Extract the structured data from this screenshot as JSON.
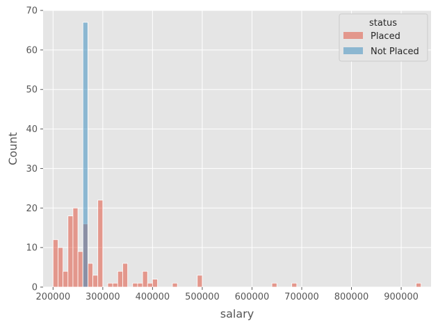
{
  "chart_data": {
    "type": "bar",
    "title": "",
    "xlabel": "salary",
    "ylabel": "Count",
    "xlim": [
      180000,
      960000
    ],
    "ylim": [
      0,
      70
    ],
    "x_ticks": [
      200000,
      300000,
      400000,
      500000,
      600000,
      700000,
      800000,
      900000
    ],
    "y_ticks": [
      0,
      10,
      20,
      30,
      40,
      50,
      60,
      70
    ],
    "grid": true,
    "legend": {
      "title": "status",
      "placement": "top-right"
    },
    "bin_width": 10000,
    "series": [
      {
        "name": "Placed",
        "color": "#E24A33",
        "bins": [
          {
            "x0": 200000,
            "count": 12
          },
          {
            "x0": 210000,
            "count": 10
          },
          {
            "x0": 220000,
            "count": 4
          },
          {
            "x0": 230000,
            "count": 18
          },
          {
            "x0": 240000,
            "count": 20
          },
          {
            "x0": 250000,
            "count": 9
          },
          {
            "x0": 260000,
            "count": 16
          },
          {
            "x0": 270000,
            "count": 6
          },
          {
            "x0": 280000,
            "count": 3
          },
          {
            "x0": 290000,
            "count": 22
          },
          {
            "x0": 300000,
            "count": 0
          },
          {
            "x0": 310000,
            "count": 1
          },
          {
            "x0": 320000,
            "count": 1
          },
          {
            "x0": 330000,
            "count": 4
          },
          {
            "x0": 340000,
            "count": 6
          },
          {
            "x0": 350000,
            "count": 0
          },
          {
            "x0": 360000,
            "count": 1
          },
          {
            "x0": 370000,
            "count": 1
          },
          {
            "x0": 380000,
            "count": 4
          },
          {
            "x0": 390000,
            "count": 1
          },
          {
            "x0": 400000,
            "count": 2
          },
          {
            "x0": 440000,
            "count": 1
          },
          {
            "x0": 490000,
            "count": 3
          },
          {
            "x0": 640000,
            "count": 1
          },
          {
            "x0": 680000,
            "count": 1
          },
          {
            "x0": 930000,
            "count": 1
          }
        ]
      },
      {
        "name": "Not Placed",
        "color": "#348ABD",
        "bins": [
          {
            "x0": 260000,
            "count": 67
          }
        ]
      }
    ]
  }
}
